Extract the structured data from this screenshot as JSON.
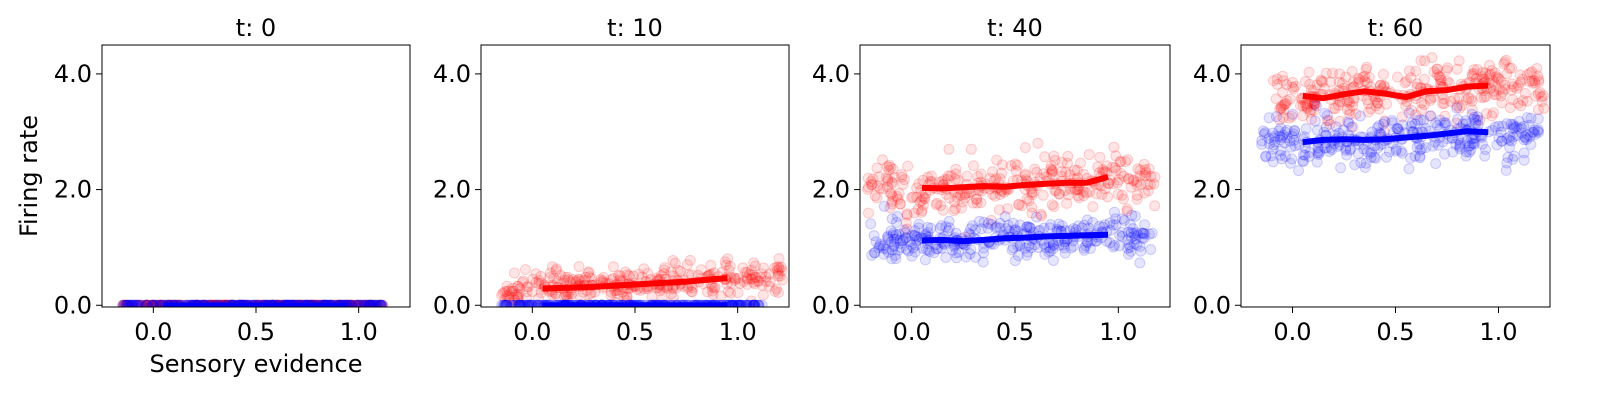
{
  "chart_data": [
    {
      "type": "scatter",
      "title": "t: 0",
      "xlabel": "Sensory evidence",
      "ylabel": "Firing rate",
      "xlim": [
        -0.25,
        1.25
      ],
      "ylim": [
        -0.03,
        4.5
      ],
      "xticks": [
        "0.0",
        "0.5",
        "1.0"
      ],
      "yticks": [
        "0.0",
        "2.0",
        "4.0"
      ],
      "series": [
        {
          "color": "#ff0000",
          "scatter_mean": 0.0,
          "scatter_sd": 0.0,
          "scatter_xmin": -0.15,
          "scatter_xmax": 1.12,
          "line_x": [
            0.05,
            0.15,
            0.25,
            0.35,
            0.45,
            0.55,
            0.65,
            0.75,
            0.85,
            0.95
          ],
          "line_y": [
            0.0,
            0.0,
            0.0,
            0.0,
            0.0,
            0.0,
            0.0,
            0.0,
            0.0,
            0.0
          ]
        },
        {
          "color": "#0000ff",
          "scatter_mean": 0.0,
          "scatter_sd": 0.0,
          "scatter_xmin": -0.15,
          "scatter_xmax": 1.12,
          "line_x": [
            0.05,
            0.15,
            0.25,
            0.35,
            0.45,
            0.55,
            0.65,
            0.75,
            0.85,
            0.95
          ],
          "line_y": [
            0.0,
            0.0,
            0.0,
            0.0,
            0.0,
            0.0,
            0.0,
            0.0,
            0.0,
            0.0
          ]
        }
      ]
    },
    {
      "type": "scatter",
      "title": "t: 10",
      "xlabel": "",
      "ylabel": "",
      "xlim": [
        -0.25,
        1.25
      ],
      "ylim": [
        -0.03,
        4.5
      ],
      "xticks": [
        "0.0",
        "0.5",
        "1.0"
      ],
      "yticks": [
        "0.0",
        "2.0",
        "4.0"
      ],
      "series": [
        {
          "color": "#ff0000",
          "scatter_mean": 0.38,
          "scatter_sd": 0.14,
          "scatter_xmin": -0.15,
          "scatter_xmax": 1.22,
          "line_x": [
            0.05,
            0.15,
            0.25,
            0.35,
            0.45,
            0.55,
            0.65,
            0.75,
            0.85,
            0.95
          ],
          "line_y": [
            0.29,
            0.3,
            0.31,
            0.33,
            0.35,
            0.37,
            0.39,
            0.41,
            0.44,
            0.47
          ]
        },
        {
          "color": "#0000ff",
          "scatter_mean": 0.0,
          "scatter_sd": 0.0,
          "scatter_xmin": -0.15,
          "scatter_xmax": 1.12,
          "line_x": [
            0.05,
            0.15,
            0.25,
            0.35,
            0.45,
            0.55,
            0.65,
            0.75,
            0.85,
            0.95
          ],
          "line_y": [
            0.0,
            0.0,
            0.0,
            0.0,
            0.0,
            0.0,
            0.0,
            0.0,
            0.0,
            0.0
          ]
        }
      ]
    },
    {
      "type": "scatter",
      "title": "t: 40",
      "xlabel": "",
      "ylabel": "",
      "xlim": [
        -0.25,
        1.25
      ],
      "ylim": [
        -0.03,
        4.5
      ],
      "xticks": [
        "0.0",
        "0.5",
        "1.0"
      ],
      "yticks": [
        "0.0",
        "2.0",
        "4.0"
      ],
      "series": [
        {
          "color": "#ff0000",
          "scatter_mean": 2.08,
          "scatter_sd": 0.22,
          "scatter_xmin": -0.22,
          "scatter_xmax": 1.18,
          "line_x": [
            0.05,
            0.15,
            0.25,
            0.35,
            0.45,
            0.55,
            0.65,
            0.75,
            0.85,
            0.95
          ],
          "line_y": [
            2.03,
            2.02,
            2.04,
            2.06,
            2.05,
            2.08,
            2.1,
            2.12,
            2.12,
            2.22
          ]
        },
        {
          "color": "#0000ff",
          "scatter_mean": 1.15,
          "scatter_sd": 0.18,
          "scatter_xmin": -0.2,
          "scatter_xmax": 1.18,
          "line_x": [
            0.05,
            0.15,
            0.25,
            0.35,
            0.45,
            0.55,
            0.65,
            0.75,
            0.85,
            0.95
          ],
          "line_y": [
            1.12,
            1.13,
            1.11,
            1.13,
            1.16,
            1.17,
            1.19,
            1.2,
            1.21,
            1.22
          ]
        }
      ]
    },
    {
      "type": "scatter",
      "title": "t: 60",
      "xlabel": "",
      "ylabel": "",
      "xlim": [
        -0.25,
        1.25
      ],
      "ylim": [
        -0.03,
        4.5
      ],
      "xticks": [
        "0.0",
        "0.5",
        "1.0"
      ],
      "yticks": [
        "0.0",
        "2.0",
        "4.0"
      ],
      "series": [
        {
          "color": "#ff0000",
          "scatter_mean": 3.7,
          "scatter_sd": 0.22,
          "scatter_xmin": -0.1,
          "scatter_xmax": 1.22,
          "line_x": [
            0.05,
            0.15,
            0.25,
            0.35,
            0.45,
            0.55,
            0.65,
            0.75,
            0.85,
            0.95
          ],
          "line_y": [
            3.62,
            3.58,
            3.65,
            3.7,
            3.66,
            3.6,
            3.7,
            3.72,
            3.78,
            3.8
          ]
        },
        {
          "color": "#0000ff",
          "scatter_mean": 2.88,
          "scatter_sd": 0.2,
          "scatter_xmin": -0.15,
          "scatter_xmax": 1.2,
          "line_x": [
            0.05,
            0.15,
            0.25,
            0.35,
            0.45,
            0.55,
            0.65,
            0.75,
            0.85,
            0.95
          ],
          "line_y": [
            2.82,
            2.86,
            2.87,
            2.86,
            2.87,
            2.9,
            2.93,
            2.97,
            3.01,
            2.99
          ]
        }
      ]
    }
  ]
}
